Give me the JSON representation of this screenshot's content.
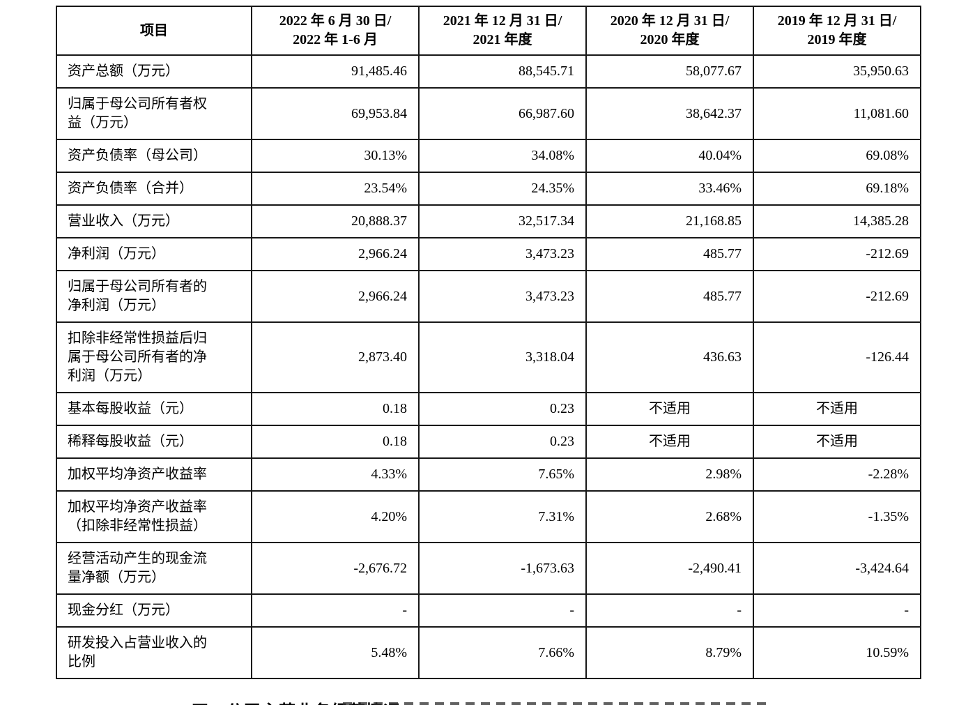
{
  "table": {
    "na_text": "不适用",
    "columns": [
      {
        "lines": [
          "项目"
        ]
      },
      {
        "lines": [
          "2022 年 6 月 30 日/",
          "2022 年 1-6 月"
        ]
      },
      {
        "lines": [
          "2021 年 12 月 31 日/",
          "2021 年度"
        ]
      },
      {
        "lines": [
          "2020 年 12 月 31 日/",
          "2020 年度"
        ]
      },
      {
        "lines": [
          "2019 年 12 月 31 日/",
          "2019 年度"
        ]
      }
    ],
    "rows": [
      {
        "label": "资产总额（万元）",
        "values": [
          "91,485.46",
          "88,545.71",
          "58,077.67",
          "35,950.63"
        ]
      },
      {
        "label": "归属于母公司所有者权益（万元）",
        "values": [
          "69,953.84",
          "66,987.60",
          "38,642.37",
          "11,081.60"
        ]
      },
      {
        "label": "资产负债率（母公司）",
        "values": [
          "30.13%",
          "34.08%",
          "40.04%",
          "69.08%"
        ]
      },
      {
        "label": "资产负债率（合并）",
        "values": [
          "23.54%",
          "24.35%",
          "33.46%",
          "69.18%"
        ]
      },
      {
        "label": "营业收入（万元）",
        "values": [
          "20,888.37",
          "32,517.34",
          "21,168.85",
          "14,385.28"
        ]
      },
      {
        "label": "净利润（万元）",
        "values": [
          "2,966.24",
          "3,473.23",
          "485.77",
          "-212.69"
        ]
      },
      {
        "label": "归属于母公司所有者的净利润（万元）",
        "values": [
          "2,966.24",
          "3,473.23",
          "485.77",
          "-212.69"
        ]
      },
      {
        "label": "扣除非经常性损益后归属于母公司所有者的净利润（万元）",
        "values": [
          "2,873.40",
          "3,318.04",
          "436.63",
          "-126.44"
        ]
      },
      {
        "label": "基本每股收益（元）",
        "values": [
          "0.18",
          "0.23",
          "不适用",
          "不适用"
        ]
      },
      {
        "label": "稀释每股收益（元）",
        "values": [
          "0.18",
          "0.23",
          "不适用",
          "不适用"
        ]
      },
      {
        "label": "加权平均净资产收益率",
        "values": [
          "4.33%",
          "7.65%",
          "2.98%",
          "-2.28%"
        ]
      },
      {
        "label": "加权平均净资产收益率（扣除非经常性损益）",
        "values": [
          "4.20%",
          "7.31%",
          "2.68%",
          "-1.35%"
        ]
      },
      {
        "label": "经营活动产生的现金流量净额（万元）",
        "values": [
          "-2,676.72",
          "-1,673.63",
          "-2,490.41",
          "-3,424.64"
        ]
      },
      {
        "label": "现金分红（万元）",
        "values": [
          "-",
          "-",
          "-",
          "-"
        ]
      },
      {
        "label": "研发投入占营业收入的比例",
        "values": [
          "5.48%",
          "7.66%",
          "8.79%",
          "10.59%"
        ]
      }
    ]
  },
  "section_heading": "四、公司主营业务经营情况"
}
